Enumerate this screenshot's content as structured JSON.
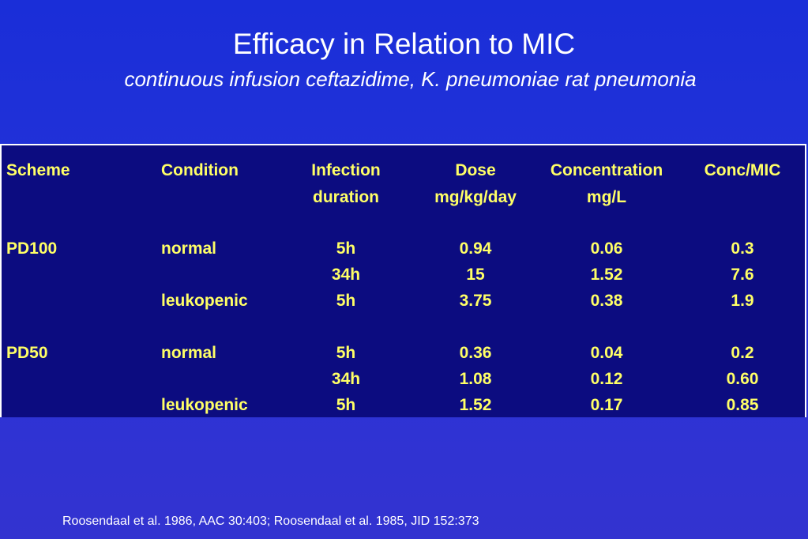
{
  "slide": {
    "title": "Efficacy in Relation to MIC",
    "subtitle": "continuous infusion ceftazidime, K. pneumoniae rat pneumonia",
    "footer": "Roosendaal et al. 1986, AAC 30:403; Roosendaal et al. 1985, JID 152:373"
  },
  "table": {
    "headers": {
      "scheme": "Scheme",
      "condition": "Condition",
      "infection_1": "Infection",
      "infection_2": "duration",
      "dose_1": "Dose",
      "dose_2": "mg/kg/day",
      "concentration_1": "Concentration",
      "concentration_2": "mg/L",
      "conc_mic": "Conc/MIC"
    },
    "rows": [
      {
        "scheme": "PD100",
        "condition": "normal",
        "duration": "5h",
        "dose": "0.94",
        "concentration": "0.06",
        "conc_mic": "0.3"
      },
      {
        "scheme": "",
        "condition": "",
        "duration": "34h",
        "dose": "15",
        "concentration": "1.52",
        "conc_mic": "7.6"
      },
      {
        "scheme": "",
        "condition": "leukopenic",
        "duration": "5h",
        "dose": "3.75",
        "concentration": "0.38",
        "conc_mic": "1.9"
      },
      {
        "scheme": "PD50",
        "condition": "normal",
        "duration": "5h",
        "dose": "0.36",
        "concentration": "0.04",
        "conc_mic": "0.2"
      },
      {
        "scheme": "",
        "condition": "",
        "duration": "34h",
        "dose": "1.08",
        "concentration": "0.12",
        "conc_mic": "0.60"
      },
      {
        "scheme": "",
        "condition": "leukopenic",
        "duration": "5h",
        "dose": "1.52",
        "concentration": "0.17",
        "conc_mic": "0.85"
      }
    ]
  }
}
